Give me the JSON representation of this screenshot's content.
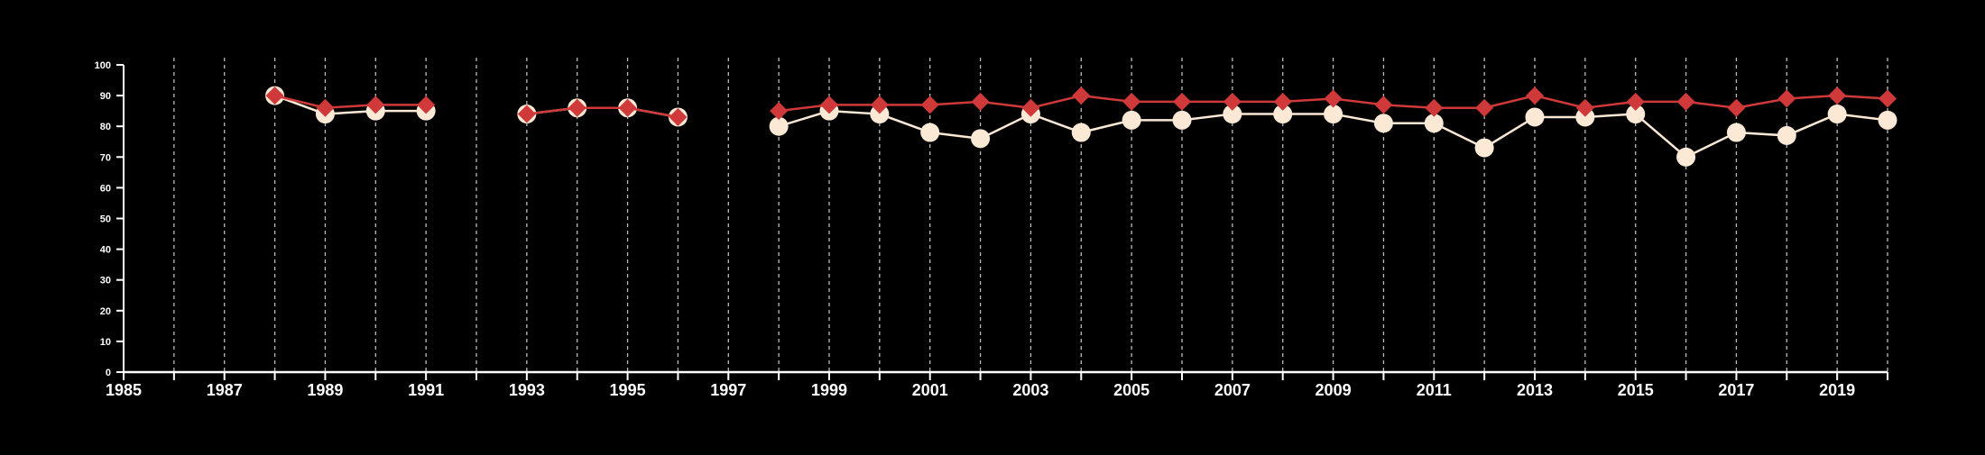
{
  "chart_data": {
    "type": "line",
    "title": "",
    "xlabel": "",
    "ylabel": "",
    "xlim": [
      1985,
      2020
    ],
    "ylim": [
      0,
      100
    ],
    "y_ticks": [
      0,
      10,
      20,
      30,
      40,
      50,
      60,
      70,
      80,
      90,
      100
    ],
    "x_tick_labels": [
      1985,
      1987,
      1989,
      1991,
      1993,
      1995,
      1997,
      1999,
      2001,
      2003,
      2005,
      2007,
      2009,
      2011,
      2013,
      2015,
      2017,
      2019
    ],
    "vertical_gridlines_every_year": true,
    "x": [
      1988,
      1989,
      1990,
      1991,
      1993,
      1994,
      1995,
      1996,
      1998,
      1999,
      2000,
      2001,
      2002,
      2003,
      2004,
      2005,
      2006,
      2007,
      2008,
      2009,
      2010,
      2011,
      2012,
      2013,
      2014,
      2015,
      2016,
      2017,
      2018,
      2019,
      2020
    ],
    "series": [
      {
        "values": [
          90,
          84,
          85,
          85,
          84,
          86,
          86,
          83,
          80,
          85,
          84,
          78,
          76,
          84,
          78,
          82,
          82,
          84,
          84,
          84,
          81,
          81,
          73,
          83,
          83,
          84,
          70,
          78,
          77,
          84,
          82
        ],
        "color": "#fbe9d6",
        "marker": "circle"
      },
      {
        "values": [
          90,
          86,
          87,
          87,
          84,
          86,
          86,
          83,
          85,
          87,
          87,
          87,
          88,
          86,
          90,
          88,
          88,
          88,
          88,
          89,
          87,
          86,
          86,
          90,
          86,
          88,
          88,
          86,
          89,
          90,
          89
        ],
        "color": "#d0393a",
        "marker": "diamond"
      }
    ],
    "colors": {
      "background": "#000000",
      "axis": "#ffffff",
      "grid": "#bbbbbb"
    }
  }
}
